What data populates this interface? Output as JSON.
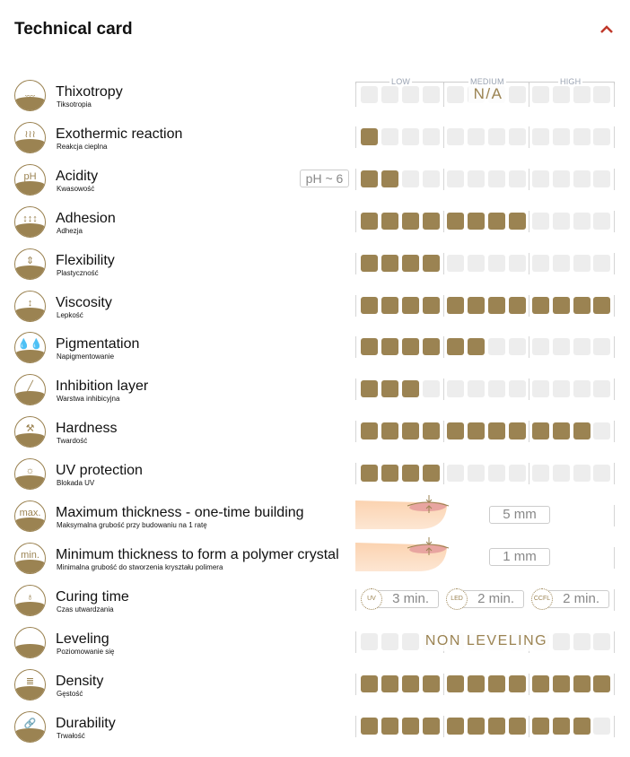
{
  "header": {
    "title": "Technical card",
    "collapse_icon": "chevron-up-icon",
    "accent_color": "#c0392b"
  },
  "scale": {
    "low": "LOW",
    "medium": "MEDIUM",
    "high": "HIGH",
    "max": 12,
    "fill_color": "#9b8352",
    "empty_color": "#ededed"
  },
  "rows": [
    {
      "title": "Thixotropy",
      "subtitle": "Tiksotropia",
      "icon": "thixotropy-icon",
      "glyph": "﹏",
      "type": "scale",
      "value": 0,
      "overlay": "N/A"
    },
    {
      "title": "Exothermic reaction",
      "subtitle": "Reakcja cieplna",
      "icon": "heat-icon",
      "glyph": "≀≀≀",
      "type": "scale",
      "value": 1
    },
    {
      "title": "Acidity",
      "subtitle": "Kwasowość",
      "icon": "ph-icon",
      "glyph": "pH",
      "type": "scale",
      "value": 2,
      "badge": "pH ~ 6"
    },
    {
      "title": "Adhesion",
      "subtitle": "Adhezja",
      "icon": "adhesion-icon",
      "glyph": "↕↕↕",
      "type": "scale",
      "value": 8
    },
    {
      "title": "Flexibility",
      "subtitle": "Plastyczność",
      "icon": "flexibility-icon",
      "glyph": "⇕",
      "type": "scale",
      "value": 4
    },
    {
      "title": "Viscosity",
      "subtitle": "Lepkość",
      "icon": "viscosity-icon",
      "glyph": "↕",
      "type": "scale",
      "value": 12
    },
    {
      "title": "Pigmentation",
      "subtitle": "Napigmentowanie",
      "icon": "pigment-drops-icon",
      "glyph": "💧💧",
      "type": "scale",
      "value": 6
    },
    {
      "title": "Inhibition layer",
      "subtitle": "Warstwa inhibicyjna",
      "icon": "inhibition-layer-icon",
      "glyph": "╱",
      "type": "scale",
      "value": 3
    },
    {
      "title": "Hardness",
      "subtitle": "Twardość",
      "icon": "hammer-icon",
      "glyph": "⚒",
      "type": "scale",
      "value": 11
    },
    {
      "title": "UV protection",
      "subtitle": "Blokada UV",
      "icon": "uv-protection-icon",
      "glyph": "☼",
      "type": "scale",
      "value": 4
    },
    {
      "title": "Maximum thickness - one-time building",
      "subtitle": "Maksymalna grubość przy budowaniu na 1 ratę",
      "icon": "max-thickness-icon",
      "glyph": "max.",
      "type": "thickness",
      "value": "5 mm"
    },
    {
      "title": "Minimum thickness to form a polymer crystal",
      "subtitle": "Minimalna grubość do stworzenia kryształu polimera",
      "icon": "min-thickness-icon",
      "glyph": "min.",
      "type": "thickness",
      "value": "1 mm"
    },
    {
      "title": "Curing time",
      "subtitle": "Czas utwardzania",
      "icon": "lamp-icon",
      "glyph": "♁",
      "type": "curing",
      "items": [
        {
          "lamp": "UV",
          "time": "3 min."
        },
        {
          "lamp": "LED",
          "time": "2 min."
        },
        {
          "lamp": "CCFL",
          "time": "2 min."
        }
      ]
    },
    {
      "title": "Leveling",
      "subtitle": "Poziomowanie się",
      "icon": "leveling-icon",
      "glyph": "",
      "type": "scale",
      "value": 0,
      "overlay": "NON LEVELING"
    },
    {
      "title": "Density",
      "subtitle": "Gęstość",
      "icon": "density-icon",
      "glyph": "≣",
      "type": "scale",
      "value": 12
    },
    {
      "title": "Durability",
      "subtitle": "Trwałość",
      "icon": "chain-link-icon",
      "glyph": "🔗",
      "type": "scale",
      "value": 11
    }
  ]
}
